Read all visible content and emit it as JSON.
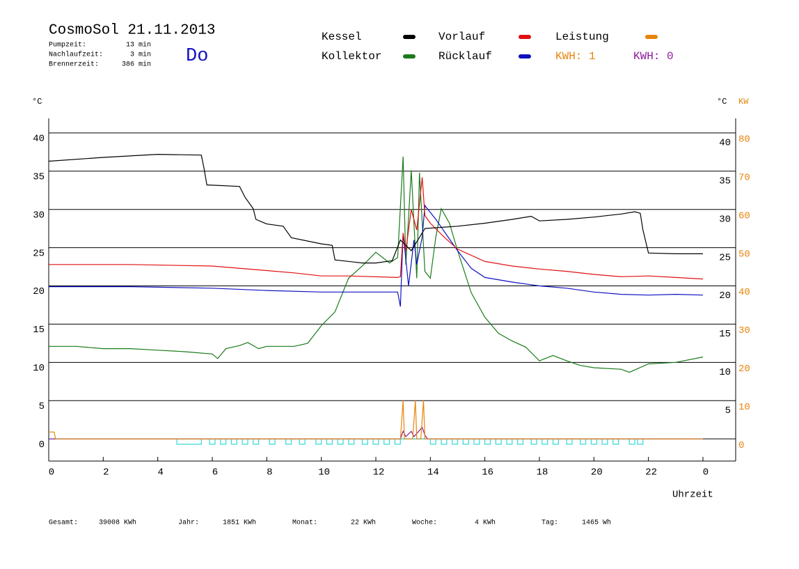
{
  "chart_data": {
    "type": "line",
    "title": "CosmoSol 21.11.2013",
    "day": "Do",
    "info": [
      [
        "Pumpzeit:",
        "13 min"
      ],
      [
        "Nachlaufzeit:",
        "3 min"
      ],
      [
        "Brennerzeit:",
        "386 min"
      ]
    ],
    "y_label": "°C",
    "y2_label_c": "°C",
    "y2_label": "KW",
    "x_label": "Uhrzeit",
    "kwh_labels": [
      {
        "text": "KWH: 1",
        "color": "#e8840c"
      },
      {
        "text": "KWH: 0",
        "color": "#8a1a9a"
      }
    ],
    "xlim": [
      0,
      25.2
    ],
    "ylim": [
      -2.9,
      41.9
    ],
    "y2lim": [
      -5.8,
      83.8
    ],
    "xticks": [
      0,
      2,
      4,
      6,
      8,
      10,
      12,
      14,
      16,
      18,
      20,
      22,
      {
        "value": 24,
        "label": "0"
      }
    ],
    "yticks": [
      0,
      5,
      10,
      15,
      20,
      25,
      30,
      35,
      40
    ],
    "y_right_ticks": [
      5,
      10,
      15,
      20,
      25,
      30,
      35,
      40
    ],
    "y2ticks": [
      0,
      10,
      20,
      30,
      40,
      50,
      60,
      70,
      80
    ],
    "grid": true,
    "series": [
      {
        "name": "Kessel",
        "color": "#000000",
        "x": [
          0,
          2,
          4,
          5.6,
          5.7,
          5.8,
          7,
          7.2,
          7.5,
          7.6,
          8,
          8.6,
          8.9,
          10,
          10.4,
          10.5,
          11.5,
          12,
          12.6,
          12.9,
          13.3,
          13.8,
          15,
          16,
          17,
          17.7,
          18,
          19,
          20,
          21,
          21.5,
          21.7,
          21.8,
          22,
          23,
          24
        ],
        "values": [
          36.3,
          36.8,
          37.2,
          37.1,
          35.3,
          33.2,
          33.0,
          31.6,
          30.1,
          28.7,
          28.1,
          27.8,
          26.3,
          25.5,
          25.3,
          23.4,
          23.0,
          23.0,
          23.3,
          26.0,
          24.6,
          27.5,
          27.8,
          28.2,
          28.7,
          29.1,
          28.5,
          28.7,
          29.0,
          29.4,
          29.7,
          29.5,
          27.3,
          24.3,
          24.2,
          24.2
        ]
      },
      {
        "name": "Kollektor",
        "color": "#1a7a1a",
        "x": [
          0,
          1,
          2,
          3,
          4,
          5,
          6,
          6.2,
          6.5,
          7,
          7.3,
          7.7,
          8,
          9,
          9.5,
          10,
          10.5,
          11,
          11.5,
          12,
          12.5,
          12.8,
          13,
          13.1,
          13.3,
          13.5,
          13.6,
          13.8,
          14,
          14.2,
          14.4,
          14.7,
          15,
          15.5,
          16,
          16.5,
          17,
          17.5,
          18,
          18.5,
          19,
          19.5,
          20,
          21,
          21.3,
          22,
          23,
          24
        ],
        "values": [
          12.1,
          12.1,
          11.8,
          11.8,
          11.6,
          11.4,
          11.1,
          10.5,
          11.8,
          12.2,
          12.6,
          11.8,
          12.1,
          12.1,
          12.5,
          14.8,
          16.6,
          21.0,
          22.6,
          24.4,
          23.0,
          23.7,
          36.9,
          22.8,
          35.1,
          21.0,
          34.8,
          21.9,
          21.0,
          26.4,
          30.1,
          28.2,
          24.6,
          19.1,
          15.9,
          13.8,
          12.8,
          12.0,
          10.2,
          10.9,
          10.2,
          9.6,
          9.3,
          9.1,
          8.7,
          9.8,
          10.0,
          10.7
        ]
      },
      {
        "name": "Vorlauf",
        "color": "#e01010",
        "x": [
          0,
          3,
          6,
          8,
          9,
          10,
          11,
          12.8,
          12.9,
          13,
          13.1,
          13.3,
          13.5,
          13.7,
          13.8,
          14,
          14.5,
          15,
          16,
          17,
          18,
          19,
          20,
          21,
          22,
          23,
          24
        ],
        "values": [
          22.8,
          22.8,
          22.6,
          22.0,
          21.7,
          21.3,
          21.3,
          21.1,
          21.2,
          26.9,
          24.6,
          30.0,
          27.3,
          34.2,
          29.2,
          28.2,
          26.4,
          24.8,
          23.2,
          22.6,
          22.2,
          21.9,
          21.5,
          21.2,
          21.3,
          21.1,
          20.9
        ]
      },
      {
        "name": "Rücklauf",
        "color": "#1010c0",
        "x": [
          0,
          3,
          6,
          8,
          10,
          12.8,
          12.9,
          13,
          13.2,
          13.4,
          13.5,
          13.7,
          13.8,
          14.2,
          15,
          15.5,
          16,
          17,
          18,
          19,
          20,
          21,
          22,
          23,
          24
        ],
        "values": [
          19.9,
          19.9,
          19.7,
          19.4,
          19.2,
          19.2,
          17.3,
          26.9,
          20.0,
          26.0,
          22.8,
          26.4,
          30.5,
          28.7,
          24.6,
          22.3,
          21.1,
          20.5,
          20.0,
          19.7,
          19.2,
          18.9,
          18.8,
          18.9,
          18.8
        ]
      },
      {
        "name": "Leistung",
        "color": "#e8840c",
        "axis": "y2",
        "x": [
          0,
          0.2,
          0.25,
          12.9,
          13.0,
          13.05,
          13.35,
          13.45,
          13.5,
          13.65,
          13.75,
          13.8,
          24
        ],
        "values": [
          1.8,
          1.8,
          0,
          0,
          10,
          0,
          0,
          10,
          0,
          0,
          10,
          0,
          0
        ]
      },
      {
        "color": "#8a1a9a",
        "x": [
          0,
          12.9,
          13.0,
          13.1,
          13.3,
          13.4,
          13.7,
          13.8,
          13.9,
          24
        ],
        "values": [
          0,
          0,
          1,
          0.3,
          1,
          0.3,
          1.5,
          0.5,
          0,
          0
        ]
      }
    ],
    "pump_color": "#30d8d8",
    "pump_on": [
      [
        4.7,
        5.6
      ],
      [
        5.9,
        6.1
      ],
      [
        6.3,
        6.5
      ],
      [
        6.7,
        6.9
      ],
      [
        7.1,
        7.3
      ],
      [
        7.5,
        7.7
      ],
      [
        8.1,
        8.3
      ],
      [
        8.7,
        8.9
      ],
      [
        9.2,
        9.4
      ],
      [
        9.8,
        10.0
      ],
      [
        10.2,
        10.4
      ],
      [
        10.6,
        10.8
      ],
      [
        11.0,
        11.2
      ],
      [
        11.5,
        11.7
      ],
      [
        11.9,
        12.1
      ],
      [
        12.3,
        12.5
      ],
      [
        12.7,
        12.9
      ],
      [
        14.0,
        14.2
      ],
      [
        14.4,
        14.6
      ],
      [
        14.8,
        15.0
      ],
      [
        15.2,
        15.4
      ],
      [
        15.6,
        15.8
      ],
      [
        16.0,
        16.2
      ],
      [
        16.4,
        16.6
      ],
      [
        16.8,
        17.0
      ],
      [
        17.2,
        17.4
      ],
      [
        17.7,
        17.9
      ],
      [
        18.1,
        18.3
      ],
      [
        18.5,
        18.7
      ],
      [
        19.0,
        19.2
      ],
      [
        19.5,
        19.7
      ],
      [
        19.9,
        20.1
      ],
      [
        20.3,
        20.5
      ],
      [
        20.7,
        20.9
      ],
      [
        21.3,
        21.5
      ],
      [
        21.6,
        21.8
      ]
    ],
    "pump_level": -0.7,
    "footer": [
      [
        "Gesamt:",
        "39008 KWh"
      ],
      [
        "Jahr:",
        "1851 KWh"
      ],
      [
        "Monat:",
        "22 KWh"
      ],
      [
        "Woche:",
        "4 KWh"
      ],
      [
        "Tag:",
        "1465 Wh"
      ]
    ]
  }
}
